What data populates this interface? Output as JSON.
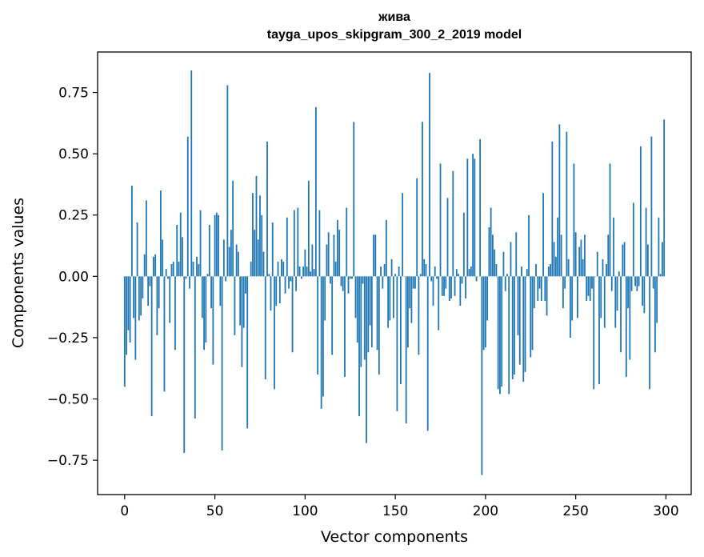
{
  "chart_data": {
    "type": "bar",
    "title_line1": "жива",
    "title_line2": "tayga_upos_skipgram_300_2_2019 model",
    "xlabel": "Vector components",
    "ylabel": "Components values",
    "xlim": [
      -15,
      314
    ],
    "ylim": [
      -0.89,
      0.915
    ],
    "xticks": [
      0,
      50,
      100,
      150,
      200,
      250,
      300
    ],
    "xtick_labels": [
      "0",
      "50",
      "100",
      "150",
      "200",
      "250",
      "300"
    ],
    "yticks": [
      -0.75,
      -0.5,
      -0.25,
      0.0,
      0.25,
      0.5,
      0.75
    ],
    "ytick_labels": [
      "−0.75",
      "−0.50",
      "−0.25",
      "0.00",
      "0.25",
      "0.50",
      "0.75"
    ],
    "bar_color": "#1f77b4",
    "values": [
      -0.45,
      -0.32,
      -0.22,
      -0.27,
      0.37,
      -0.17,
      -0.34,
      0.22,
      -0.18,
      -0.16,
      -0.09,
      0.09,
      0.31,
      -0.12,
      -0.04,
      -0.57,
      0.08,
      0.09,
      -0.24,
      -0.13,
      0.35,
      0.15,
      -0.47,
      0.03,
      -0.01,
      -0.19,
      0.05,
      0.06,
      -0.3,
      0.21,
      0.06,
      0.26,
      0.16,
      -0.72,
      -0.01,
      0.57,
      -0.05,
      0.84,
      0.06,
      -0.58,
      0.08,
      0.05,
      0.27,
      -0.17,
      -0.3,
      -0.27,
      0.01,
      0.21,
      -0.13,
      -0.36,
      0.25,
      0.26,
      0.25,
      -0.12,
      -0.71,
      0.15,
      -0.02,
      0.78,
      0.12,
      0.19,
      0.39,
      -0.24,
      0.13,
      0.1,
      -0.2,
      -0.37,
      -0.21,
      -0.07,
      -0.62,
      0.0,
      0.06,
      0.34,
      0.19,
      0.41,
      0.15,
      0.33,
      0.25,
      0.1,
      -0.42,
      0.55,
      0.01,
      -0.14,
      0.22,
      -0.46,
      -0.12,
      0.06,
      -0.11,
      0.07,
      0.06,
      -0.07,
      0.24,
      -0.05,
      -0.02,
      -0.31,
      0.27,
      -0.06,
      0.28,
      0.04,
      -0.01,
      0.04,
      0.11,
      0.04,
      0.39,
      0.02,
      0.13,
      0.03,
      0.69,
      -0.4,
      0.27,
      -0.54,
      -0.49,
      -0.18,
      0.13,
      0.18,
      -0.03,
      -0.32,
      0.17,
      0.06,
      0.23,
      0.19,
      -0.04,
      -0.06,
      -0.41,
      0.28,
      -0.07,
      -0.01,
      -0.01,
      0.63,
      -0.17,
      -0.27,
      -0.57,
      -0.37,
      -0.03,
      -0.34,
      -0.68,
      -0.31,
      -0.2,
      -0.29,
      0.17,
      0.17,
      -0.3,
      -0.4,
      0.04,
      -0.05,
      0.05,
      0.23,
      -0.21,
      -0.18,
      0.07,
      -0.17,
      0.01,
      -0.55,
      0.04,
      -0.44,
      0.34,
      0.0,
      -0.6,
      -0.29,
      -0.13,
      -0.19,
      -0.05,
      -0.05,
      0.4,
      -0.32,
      0.01,
      0.63,
      0.07,
      0.05,
      -0.63,
      0.83,
      -0.02,
      -0.12,
      0.04,
      -0.01,
      -0.22,
      0.46,
      -0.08,
      -0.08,
      -0.05,
      0.32,
      -0.1,
      -0.09,
      0.43,
      -0.08,
      0.03,
      0.01,
      -0.12,
      -0.03,
      0.26,
      -0.09,
      0.48,
      0.03,
      0.04,
      0.5,
      0.48,
      -0.02,
      0.0,
      0.56,
      -0.81,
      -0.3,
      -0.29,
      -0.18,
      0.2,
      0.28,
      0.17,
      0.11,
      0.05,
      -0.46,
      -0.48,
      -0.45,
      0.1,
      -0.06,
      0.01,
      -0.48,
      0.14,
      -0.42,
      -0.4,
      0.18,
      -0.24,
      -0.36,
      0.04,
      -0.43,
      -0.39,
      0.03,
      0.25,
      -0.33,
      -0.3,
      -0.13,
      0.05,
      -0.1,
      -0.05,
      -0.1,
      0.34,
      -0.1,
      -0.16,
      0.04,
      0.05,
      0.55,
      0.14,
      0.08,
      0.24,
      0.62,
      0.17,
      -0.13,
      -0.05,
      0.59,
      0.07,
      -0.25,
      -0.18,
      0.46,
      0.18,
      -0.17,
      0.12,
      0.15,
      0.07,
      0.17,
      -0.1,
      -0.08,
      -0.1,
      -0.05,
      -0.46,
      0.0,
      0.1,
      -0.44,
      -0.17,
      0.07,
      -0.21,
      0.05,
      0.17,
      0.46,
      -0.06,
      0.24,
      -0.21,
      -0.14,
      0.02,
      -0.31,
      0.13,
      0.14,
      -0.41,
      -0.13,
      -0.34,
      -0.06,
      0.3,
      -0.04,
      -0.06,
      -0.04,
      0.53,
      -0.12,
      -0.15,
      0.28,
      0.13,
      -0.46,
      0.57,
      -0.05,
      -0.31,
      -0.19,
      0.24,
      0.01,
      0.14,
      0.64
    ]
  }
}
